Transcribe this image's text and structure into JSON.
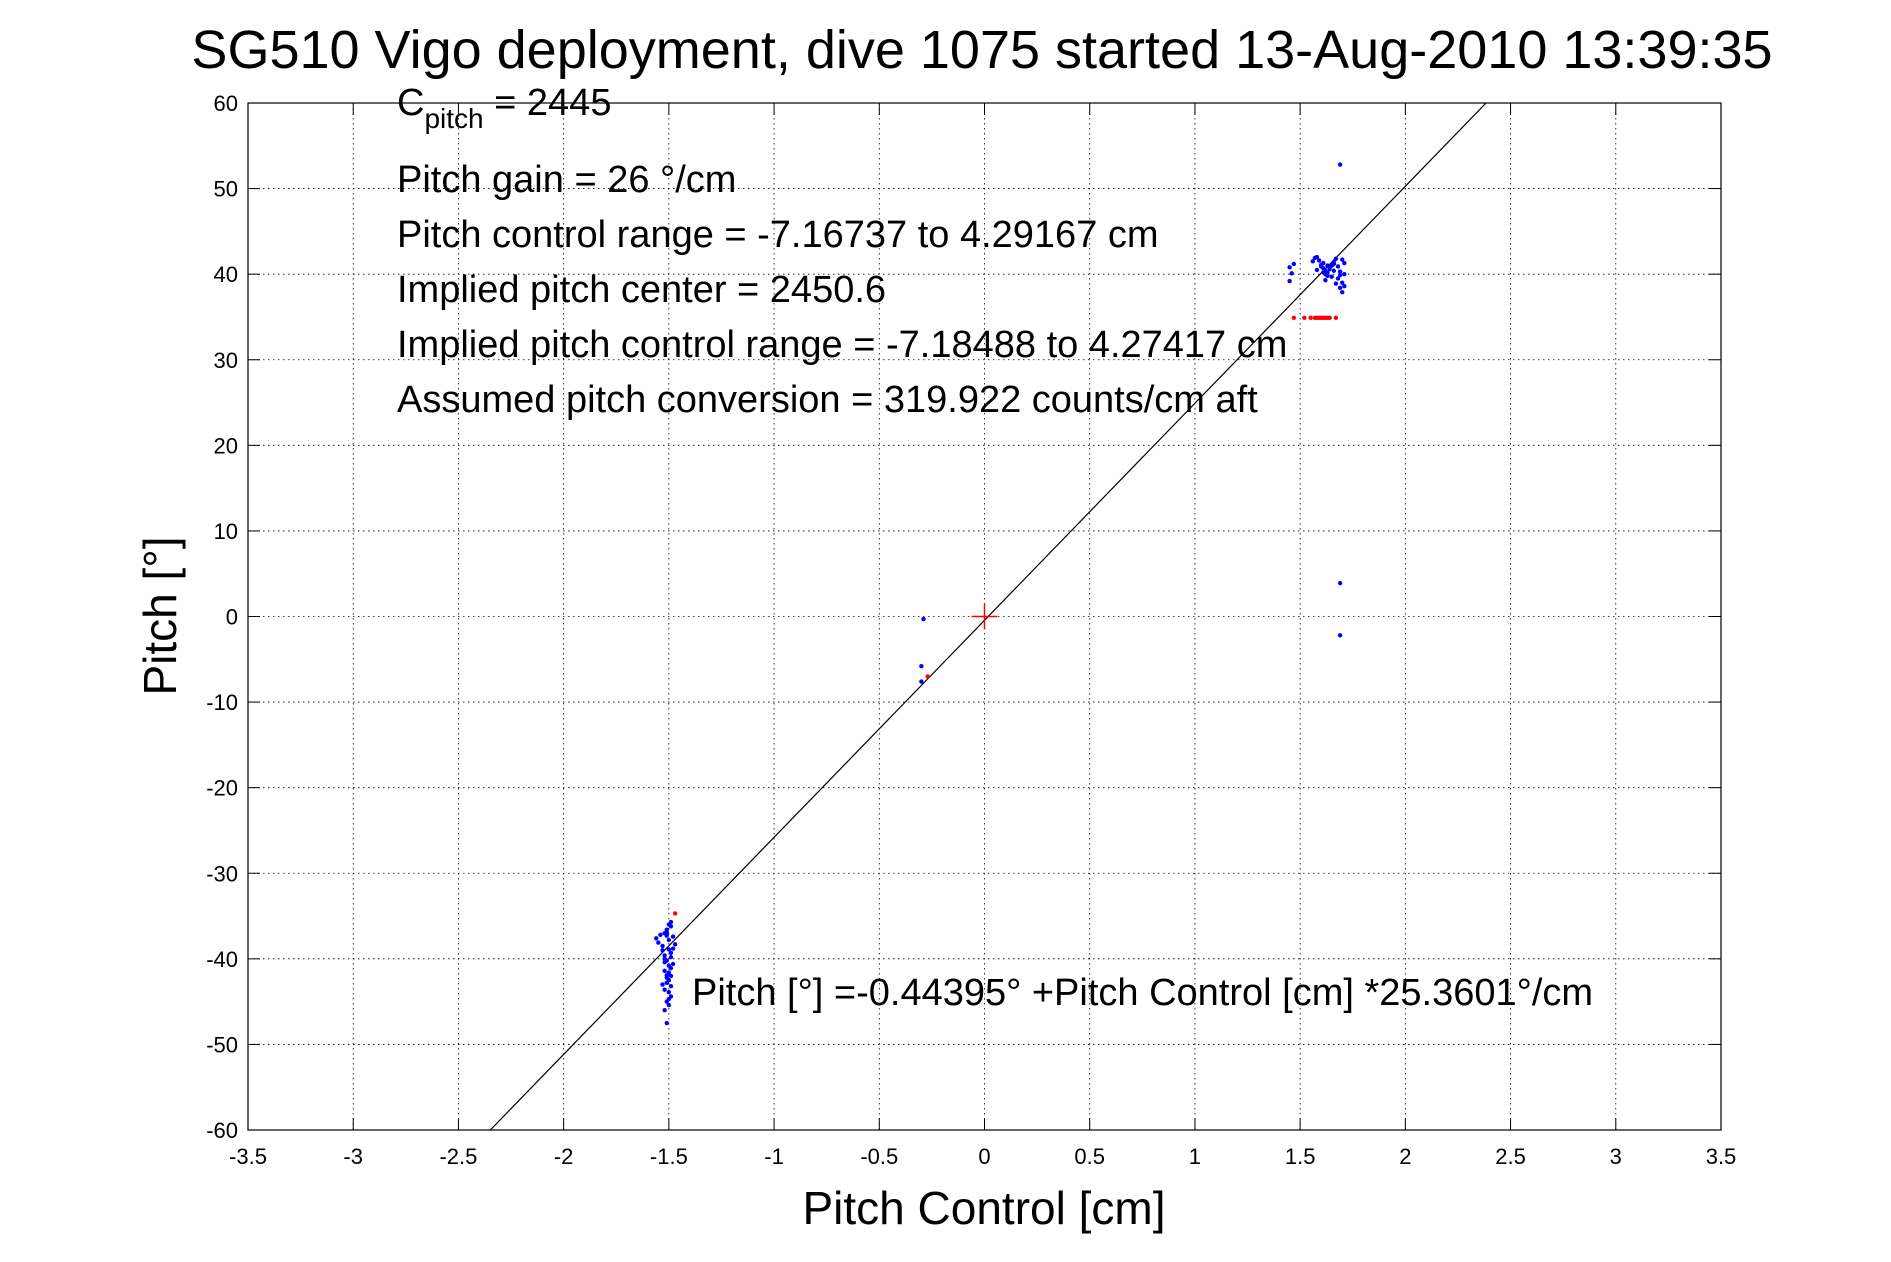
{
  "chart_data": {
    "type": "scatter",
    "title": "SG510 Vigo deployment, dive 1075 started 13-Aug-2010 13:39:35",
    "xlabel": "Pitch Control [cm]",
    "ylabel": "Pitch [°]",
    "xlim": [
      -3.5,
      3.5
    ],
    "ylim": [
      -60,
      60
    ],
    "xticks": [
      -3.5,
      -3,
      -2.5,
      -2,
      -1.5,
      -1,
      -0.5,
      0,
      0.5,
      1,
      1.5,
      2,
      2.5,
      3,
      3.5
    ],
    "yticks": [
      -60,
      -50,
      -40,
      -30,
      -20,
      -10,
      0,
      10,
      20,
      30,
      40,
      50,
      60
    ],
    "xtick_labels": [
      "-3.5",
      "-3",
      "-2.5",
      "-2",
      "-1.5",
      "-1",
      "-0.5",
      "0",
      "0.5",
      "1",
      "1.5",
      "2",
      "2.5",
      "3",
      "3.5"
    ],
    "ytick_labels": [
      "-60",
      "-50",
      "-40",
      "-30",
      "-20",
      "-10",
      "0",
      "10",
      "20",
      "30",
      "40",
      "50",
      "60"
    ],
    "grid": true,
    "annotations": {
      "c_pitch_base": "C",
      "c_pitch_sub": "pitch",
      "c_pitch_value": " = 2445",
      "lines": [
        "Pitch gain = 26 °/cm",
        "Pitch control range = -7.16737 to 4.29167 cm",
        "Implied pitch center = 2450.6",
        "Implied pitch control range = -7.18488 to 4.27417 cm",
        "Assumed pitch conversion = 319.922 counts/cm aft"
      ],
      "fit_equation": "Pitch [°] =-0.44395° +Pitch Control [cm] *25.3601°/cm"
    },
    "fit_line": {
      "intercept": -0.44395,
      "slope": 25.3601
    },
    "center_marker": {
      "x": 0,
      "y": 0,
      "color": "#ff0000"
    },
    "series": [
      {
        "color": "#0000ff",
        "x": [
          1.69,
          -0.29,
          -0.3,
          -0.3,
          1.69,
          1.69,
          1.45,
          1.46,
          1.45,
          1.47,
          1.56,
          1.57,
          1.58,
          1.59,
          1.6,
          1.61,
          1.62,
          1.63,
          1.64,
          1.65,
          1.66,
          1.67,
          1.68,
          1.69,
          1.7,
          1.71,
          1.58,
          1.6,
          1.61,
          1.62,
          1.63,
          1.64,
          1.66,
          1.68,
          1.7,
          1.71,
          1.62,
          1.65,
          1.67,
          1.69,
          1.7,
          1.61,
          1.63,
          1.66,
          1.69,
          1.71,
          -1.56,
          -1.55,
          -1.54,
          -1.53,
          -1.52,
          -1.51,
          -1.5,
          -1.49,
          -1.48,
          -1.47,
          -1.53,
          -1.52,
          -1.51,
          -1.5,
          -1.49,
          -1.48,
          -1.52,
          -1.51,
          -1.5,
          -1.49,
          -1.48,
          -1.53,
          -1.52,
          -1.51,
          -1.5,
          -1.49,
          -1.51,
          -1.5,
          -1.49,
          -1.52,
          -1.5,
          -1.49,
          -1.51,
          -1.5,
          -1.52,
          -1.5,
          -1.51,
          -1.5,
          -1.49,
          -1.51,
          -1.52,
          -1.49,
          -1.51
        ],
        "y": [
          52.8,
          -0.3,
          -5.8,
          -7.6,
          3.9,
          -2.2,
          39.2,
          40.1,
          40.8,
          41.2,
          41.5,
          41.9,
          42.0,
          41.6,
          41.1,
          40.7,
          40.4,
          40.2,
          40.6,
          41.0,
          41.4,
          41.8,
          40.9,
          40.3,
          41.7,
          40.0,
          40.5,
          40.9,
          41.3,
          40.0,
          39.8,
          40.8,
          41.2,
          39.5,
          39.0,
          38.6,
          39.3,
          39.7,
          38.9,
          38.4,
          37.9,
          40.2,
          41.0,
          40.4,
          39.9,
          41.3,
          -37.6,
          -38.1,
          -37.2,
          -38.5,
          -37.0,
          -36.6,
          -37.8,
          -36.2,
          -37.4,
          -38.3,
          -39.0,
          -39.6,
          -40.2,
          -40.8,
          -39.3,
          -38.8,
          -41.4,
          -41.9,
          -42.5,
          -41.1,
          -40.6,
          -43.0,
          -43.6,
          -42.2,
          -43.9,
          -44.4,
          -45.0,
          -44.7,
          -43.2,
          -46.0,
          -36.0,
          -35.7,
          -36.9,
          -38.9,
          -40.0,
          -41.6,
          -42.8,
          -45.4,
          -39.8,
          -37.3,
          -40.4,
          -42.0,
          -47.5
        ]
      },
      {
        "color": "#ff0000",
        "x": [
          1.47,
          1.52,
          1.55,
          1.57,
          1.58,
          1.59,
          1.6,
          1.61,
          1.62,
          1.63,
          1.64,
          1.67,
          -1.47,
          -0.27
        ],
        "y": [
          34.9,
          34.9,
          34.9,
          34.9,
          34.9,
          34.9,
          34.9,
          34.9,
          34.9,
          34.9,
          34.9,
          34.9,
          -34.7,
          -7.0
        ]
      }
    ]
  }
}
